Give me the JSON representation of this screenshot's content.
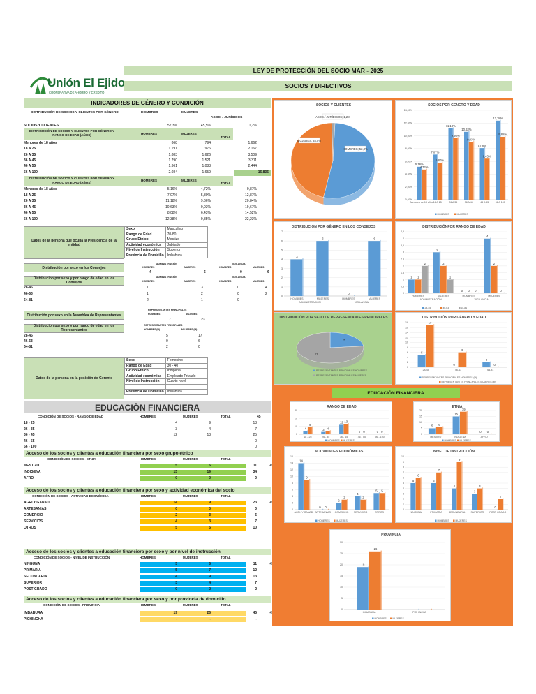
{
  "header": {
    "logo_text": "Unión El Ejido",
    "logo_sub": "COOPERATIVA DE AHORRO Y CRÉDITO",
    "title1": "LEY DE PROTECCIÓN DEL SOCIO  MAR - 2025",
    "title2": "SOCIOS Y DIRECTIVOS"
  },
  "gender": {
    "title": "INDICADORES DE GÉNERO  Y CONDICIÓN",
    "h_dist": "DISTRIBUCIÓN DE SOCIOS Y CLIENTES POR GÉNERO",
    "h_hombres": "HOMBRES",
    "h_mujeres": "MUJERES",
    "h_asoc": "ASOC. / JURÍDICOS",
    "socios_label": "SOCIOS Y CLIENTES",
    "socios": [
      "52,3%",
      "45,5%",
      "1,2%"
    ],
    "h_rango": "DISTRIBUCIÓN DE SOCIOS Y CLIENTES POR GÉNERO Y RANGO DE EDAD (AÑOS)",
    "h_total": "TOTAL",
    "counts": [
      {
        "label": "Menores de 18 años",
        "h": "868",
        "m": "794",
        "t": "1.662"
      },
      {
        "label": "18 A 25",
        "h": "1.191",
        "m": "976",
        "t": "2.167"
      },
      {
        "label": "26 A 35",
        "h": "1.883",
        "m": "1.626",
        "t": "3.509"
      },
      {
        "label": "36 A 45",
        "h": "1.790",
        "m": "1.521",
        "t": "3.311"
      },
      {
        "label": "46 A 55",
        "h": "1.361",
        "m": "1.083",
        "t": "2.444"
      },
      {
        "label": "56 A 100",
        "h": "2.084",
        "m": "1.659",
        "t": "3.743"
      }
    ],
    "grand_total": "16.836",
    "h_rango2": "DISTRIBUCIÓN DE SOCIOS Y CLIENTES POR GÉNERO Y RANGO DE EDAD (AÑOS)",
    "pcts": [
      {
        "label": "Menores de 18 años",
        "h": "5,16%",
        "m": "4,72%",
        "t": "9,87%"
      },
      {
        "label": "18 A 25",
        "h": "7,07%",
        "m": "5,80%",
        "t": "12,87%"
      },
      {
        "label": "26 A 35",
        "h": "11,18%",
        "m": "9,66%",
        "t": "20,84%"
      },
      {
        "label": "36 A 45",
        "h": "10,63%",
        "m": "9,03%",
        "t": "19,67%"
      },
      {
        "label": "46 A 55",
        "h": "8,08%",
        "m": "6,43%",
        "t": "14,52%"
      },
      {
        "label": "56 A 100",
        "h": "12,38%",
        "m": "9,85%",
        "t": "22,23%"
      }
    ]
  },
  "presidencia": {
    "label": "Datos de la persona que ocupa la Presidencia de la entidad",
    "rows": [
      [
        "Sexo",
        "Masculino"
      ],
      [
        "Rango de Edad",
        "70-80"
      ],
      [
        "Grupo Etnico",
        "Mestizo"
      ],
      [
        "Actividad económica",
        "Jubilado"
      ],
      [
        "Nivel de Instrucción",
        "Superior"
      ],
      [
        "Provincia de Domicilio",
        "Imbabura"
      ]
    ]
  },
  "consejos": {
    "title": "Distribución por sexo en los Consejos",
    "h_admin": "ADMINISTRACIÓN",
    "h_vig": "VIGILANCIA",
    "h_hombres": "HOMBRES",
    "h_mujeres": "MUJERES",
    "values": [
      "4",
      "6",
      "0",
      "6"
    ],
    "title2": "Distribucion por sexo y por rango de edad en los Consejos",
    "rows": [
      {
        "label": "28-45",
        "v": [
          "1",
          "3",
          "0",
          "4"
        ]
      },
      {
        "label": "46-63",
        "v": [
          "1",
          "2",
          "0",
          "2"
        ]
      },
      {
        "label": "64-81",
        "v": [
          "2",
          "1",
          "0",
          ""
        ]
      }
    ]
  },
  "asamblea": {
    "title": "Distribución por sexo en la Asamblea de Representantes",
    "h_rep": "REPRESENTANTES PRINCIPALES",
    "h_hombres": "HOMBRES",
    "h_mujeres": "MUJERES",
    "values": [
      "7",
      "23"
    ],
    "title2": "Distribucion por sexo y por rango de edad en los Representantes",
    "h_rep2": "REPRESENTANTES PRINCIPALES",
    "h_h2": "HOMBRES (H)",
    "h_m2": "MUJERES (M)",
    "rows": [
      {
        "label": "28-45",
        "v": [
          "5",
          "17"
        ]
      },
      {
        "label": "46-63",
        "v": [
          "0",
          "6"
        ]
      },
      {
        "label": "64-81",
        "v": [
          "2",
          "0"
        ]
      }
    ]
  },
  "gerente": {
    "label": "Datos de la persona en la posición de Gerente",
    "rows": [
      [
        "Sexo",
        "Femenino"
      ],
      [
        "Rango de Edad",
        "30 - 40"
      ],
      [
        "Grupo Etnico",
        "Indigena"
      ],
      [
        "Actividad económica",
        "Empleado Privado"
      ],
      [
        "Nivel de Instrucción",
        "Cuarto  nivel"
      ],
      [
        "",
        ""
      ],
      [
        "Provincia de Domicilio",
        "Imbabura"
      ]
    ]
  },
  "edu": {
    "title": "EDUCACIÒN FINANCIERA",
    "h_cond_rango": "CONDICIÓN DE SOCIOS - RANGO DE EDAD",
    "h_hombres": "HOMBRES",
    "h_mujeres": "MUJERES",
    "h_total": "TOTAL",
    "side_total": "45",
    "rango_rows": [
      {
        "label": "18 - 25",
        "h": "4",
        "m": "9",
        "t": "13"
      },
      {
        "label": "26 - 35",
        "h": "3",
        "m": "4",
        "t": "7"
      },
      {
        "label": "36 - 45",
        "h": "12",
        "m": "13",
        "t": "25"
      },
      {
        "label": "46 - 55",
        "h": "",
        "m": "",
        "t": "0"
      },
      {
        "label": "56 - 100",
        "h": "",
        "m": "",
        "t": "0"
      }
    ],
    "etnia_title": "Acceso de los socios y clientes a educación financiera por sexo grupo étnico",
    "h_cond_etnia": "CONDICIÓN DE SOCIOS - ETNIA",
    "etnia_rows": [
      {
        "label": "MESTIZO",
        "h": "5",
        "m": "6",
        "t": "11"
      },
      {
        "label": "INDIGENA",
        "h": "15",
        "m": "19",
        "t": "34"
      },
      {
        "label": "AFRO",
        "h": "0",
        "m": "0",
        "t": "0"
      }
    ],
    "act_title": "Acceso de los socios y clientes a educación financiera por sexo y actividad económica del socio",
    "h_cond_act": "CONDICIÓN DE SOCIOS - ACTIVIDAD ECONÓMICA",
    "act_rows": [
      {
        "label": "AGRI Y GANAD.",
        "h": "14",
        "m": "9",
        "t": "23"
      },
      {
        "label": "ARTESANIAS",
        "h": "0",
        "m": "0",
        "t": "0"
      },
      {
        "label": "COMERCIO",
        "h": "2",
        "m": "3",
        "t": "5"
      },
      {
        "label": "SERVICIOS",
        "h": "4",
        "m": "3",
        "t": "7"
      },
      {
        "label": "OTROS",
        "h": "5",
        "m": "5",
        "t": "10"
      }
    ],
    "niv_title": "Acceso de los socios y clientes  a educación financiera por sexo y por nivel de instrucción",
    "h_cond_niv": "CONDICIÓN DE SOCIOS - NIVEL DE INSTRUCCIÓN",
    "niv_rows": [
      {
        "label": "NINGUNA",
        "h": "5",
        "m": "6",
        "t": "11"
      },
      {
        "label": "PRIMARIA",
        "h": "5",
        "m": "7",
        "t": "12"
      },
      {
        "label": "SECUNDARIA",
        "h": "4",
        "m": "9",
        "t": "13"
      },
      {
        "label": "SUPERIOR",
        "h": "3",
        "m": "4",
        "t": "7"
      },
      {
        "label": "POST GRADO",
        "h": "0",
        "m": "2",
        "t": "2"
      }
    ],
    "prov_title": "Acceso de los socios y clientes a educación financiera por sexo y por provincia de domicilio",
    "h_cond_prov": "CONDICIÓN DE SOCIOS - PROVINCIA",
    "prov_rows": [
      {
        "label": "IMBABURA",
        "h": "19",
        "m": "26",
        "t": "45"
      },
      {
        "label": "PICHINCHA",
        "h": "-",
        "m": "-",
        "t": "-"
      }
    ]
  },
  "colors": {
    "blue": "#5b9bd5",
    "orange": "#ed7d31",
    "grey": "#a5a5a5",
    "panel": "#f07d32",
    "band": "#c9e0b6",
    "green": "#92d050",
    "yellow": "#ffc000",
    "cyan": "#00b0f0",
    "lightyellow": "#ffd966"
  },
  "chart_data": [
    {
      "type": "pie",
      "title": "SOCIOS Y CLIENTES",
      "categories": [
        "HOMBRES",
        "MUJERES",
        "ASOC./ JURÍDICOS"
      ],
      "values": [
        52.3,
        45.5,
        1.2
      ],
      "labels": [
        "HOMBRES; 52,3%",
        "MUJERES; 45,5%",
        "ASOC./ JURÍDICOS; 1,2%"
      ]
    },
    {
      "type": "bar",
      "title": "SOCIOS POR GÉNERO Y EDAD",
      "categories": [
        "Menores de 18 años",
        "18 A 25",
        "26 A 35",
        "36 A 45",
        "46 A 55",
        "56 A 100"
      ],
      "series": [
        {
          "name": "HOMBRES",
          "values": [
            5.16,
            7.07,
            11.18,
            10.63,
            8.08,
            12.38
          ],
          "labels": [
            "5,16%",
            "7,07%",
            "11,18%",
            "10,63%",
            "8,08%",
            "12,38%"
          ]
        },
        {
          "name": "MUJERES",
          "values": [
            4.72,
            5.8,
            9.66,
            9.03,
            6.43,
            9.85
          ],
          "labels": [
            "4,72%",
            "5,80%",
            "9,66%",
            "9,03%",
            "6,43%",
            "9,85%"
          ]
        }
      ],
      "ylim": [
        0,
        14
      ],
      "yticks": [
        "0,00%",
        "2,00%",
        "4,00%",
        "6,00%",
        "8,00%",
        "10,00%",
        "12,00%",
        "14,00%"
      ]
    },
    {
      "type": "bar",
      "title": "DISTRIBUCIÓN POR GÉNERO EN LOS CONSEJOS",
      "categories": [
        "HOMBRES",
        "MUJERES",
        "HOMBRES",
        "MUJERES"
      ],
      "groups": [
        "ADMINISTRACIÓN",
        "VIGILANCIA"
      ],
      "values": [
        4,
        6,
        0,
        6
      ],
      "ylim": [
        0,
        7
      ]
    },
    {
      "type": "bar",
      "title": "DISTRIBUCIÓNPOR RANGO DE EDAD",
      "categories": [
        "HOMBRES",
        "MUJERES",
        "HOMBRES",
        "MUJERES"
      ],
      "groups": [
        "ADMINISTRACIÓN",
        "VIGILANCIA"
      ],
      "series": [
        {
          "name": "28-45",
          "values": [
            1,
            3,
            0,
            4
          ]
        },
        {
          "name": "46-63",
          "values": [
            1,
            2,
            0,
            2
          ]
        },
        {
          "name": "64-81",
          "values": [
            2,
            1,
            0,
            0
          ]
        }
      ],
      "ylim": [
        0,
        4.5
      ]
    },
    {
      "type": "pie",
      "title": "DISTRIBUCIÓN POR SEXO DE REPRESENTANTES PRINCIPALES",
      "categories": [
        "REPRESENTANTES PRINCIPALES HOMBRES",
        "REPRESENTANTES PRINCIPALES MUJERES"
      ],
      "values": [
        7,
        23
      ],
      "labels": [
        "7",
        "23"
      ]
    },
    {
      "type": "bar",
      "title": "DISTRIBUCIÓN POR GÉNERO Y EDAD",
      "categories": [
        "28-45",
        "46-63",
        "64-81"
      ],
      "series": [
        {
          "name": "REPRESENTANTES PRINCIPALES HOMBRES (H)",
          "values": [
            5,
            0,
            2
          ]
        },
        {
          "name": "REPRESENTANTES PRINCIPALES MUJERES (M)",
          "values": [
            17,
            6,
            0
          ]
        }
      ],
      "ylim": [
        0,
        18
      ]
    },
    {
      "type": "bar",
      "title": "RANGO DE EDAD",
      "categories": [
        "18 - 25",
        "26 - 35",
        "36 - 45",
        "46 - 55",
        "56 - 100"
      ],
      "series": [
        {
          "name": "HOMBRES",
          "values": [
            4,
            3,
            12,
            0,
            0
          ]
        },
        {
          "name": "MUJERES",
          "values": [
            9,
            4,
            13,
            0,
            0
          ]
        }
      ],
      "ylim": [
        0,
        30
      ]
    },
    {
      "type": "bar",
      "title": "ETNIA",
      "categories": [
        "MESTIZO",
        "INDIGENA",
        "AFRO"
      ],
      "series": [
        {
          "name": "HOMBRES",
          "values": [
            5,
            15,
            0
          ]
        },
        {
          "name": "MUJERES",
          "values": [
            6,
            19,
            0
          ]
        }
      ],
      "ylim": [
        0,
        20
      ]
    },
    {
      "type": "bar",
      "title": "ACTIVIDADES ECONÓMICAS",
      "categories": [
        "AGRI. Y GANAD.",
        "ARTESANIAS",
        "COMERCIO",
        "SERVICIOS",
        "OTROS"
      ],
      "series": [
        {
          "name": "HOMBRES",
          "values": [
            14,
            0,
            2,
            4,
            5
          ]
        },
        {
          "name": "MUJERES",
          "values": [
            9,
            0,
            3,
            3,
            5
          ]
        }
      ],
      "ylim": [
        0,
        16
      ]
    },
    {
      "type": "bar",
      "title": "NIVEL DE INSTRUCCIÓN",
      "categories": [
        "NINGUNA",
        "PRIMARIA",
        "SECUNDARIA",
        "SUPERIOR",
        "POST GRADO"
      ],
      "series": [
        {
          "name": "HOMBRES",
          "values": [
            5,
            5,
            4,
            3,
            0
          ]
        },
        {
          "name": "MUJERES",
          "values": [
            6,
            7,
            9,
            4,
            2
          ]
        }
      ],
      "ylim": [
        0,
        10
      ]
    },
    {
      "type": "bar",
      "title": "PROVINCIA",
      "categories": [
        "IMBABURA",
        "PICHINCHA"
      ],
      "series": [
        {
          "name": "HOMBRES",
          "values": [
            19,
            0
          ]
        },
        {
          "name": "MUJERES",
          "values": [
            26,
            0
          ]
        }
      ],
      "ylim": [
        0,
        30
      ]
    }
  ]
}
